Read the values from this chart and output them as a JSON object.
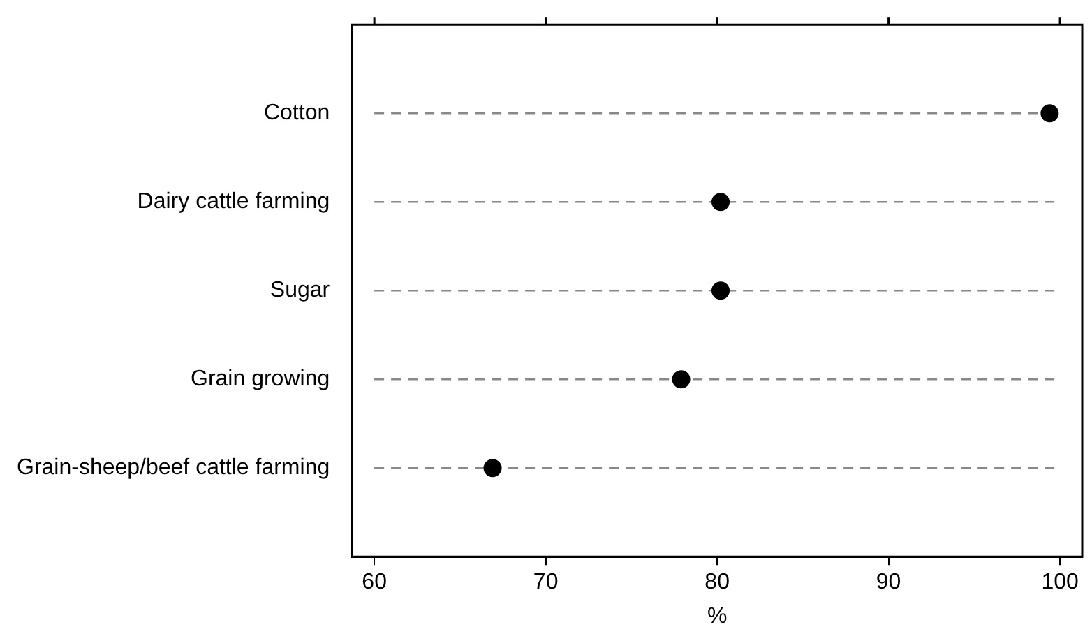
{
  "chart_data": {
    "type": "scatter",
    "orientation": "horizontal",
    "categories": [
      "Cotton",
      "Dairy cattle farming",
      "Sugar",
      "Grain growing",
      "Grain-sheep/beef cattle farming"
    ],
    "values": [
      99.4,
      80.2,
      80.2,
      77.9,
      66.9
    ],
    "color": "#000000",
    "marker": "circle",
    "xlabel": "%",
    "xlim": [
      58.7,
      101.3
    ],
    "xticks": [
      60,
      70,
      80,
      90,
      100
    ],
    "grid": "y",
    "line_style": "dashed",
    "legend": false
  }
}
